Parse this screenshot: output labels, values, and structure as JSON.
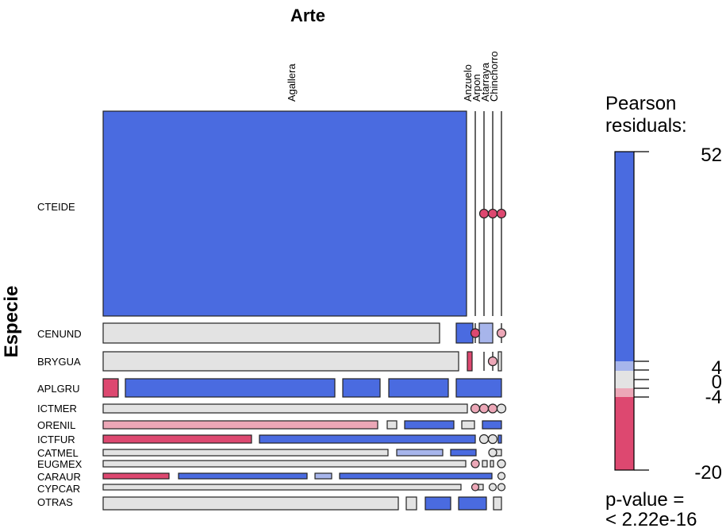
{
  "chart_data": {
    "type": "mosaic",
    "title_top": "Arte",
    "title_left": "Especie",
    "arte": [
      "Agallera",
      "Anzuelo",
      "Arpon",
      "Atarraya",
      "Chinchorro"
    ],
    "especie": [
      "CTEIDE",
      "CENUND",
      "BRYGUA",
      "APLGRU",
      "ICTMER",
      "ORENIL",
      "ICTFUR",
      "CATMEL",
      "EUGMEX",
      "CARAUR",
      "CYPCAR",
      "OTRAS"
    ],
    "legend": {
      "title_line1": "Pearson",
      "title_line2": "residuals:",
      "ticks": [
        "52",
        "4",
        "0",
        "-4",
        "-20"
      ],
      "range": [
        -20,
        52
      ],
      "colors": {
        "strong_positive": "#4a6be0",
        "weak_positive": "#a7b5eb",
        "neutral": "#e3e3e3",
        "weak_negative": "#eca7b7",
        "strong_negative": "#dd4870"
      },
      "pvalue_line1": "p-value =",
      "pvalue_line2": "< 2.22e-16"
    }
  }
}
